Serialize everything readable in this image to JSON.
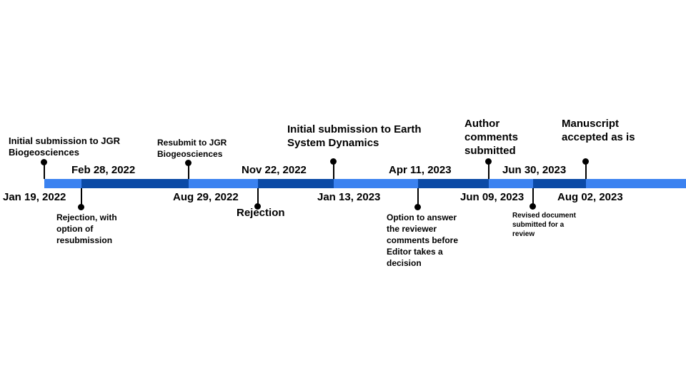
{
  "colors": {
    "light_segment": "#3b82f0",
    "dark_segment": "#0b4aa6"
  },
  "events": [
    {
      "date": "Jan 19, 2022",
      "label": "Initial submission to JGR Biogeosciences"
    },
    {
      "date": "Feb 28, 2022",
      "label": "Rejection, with option of resubmission"
    },
    {
      "date": "Aug 29, 2022",
      "label": "Resubmit to JGR Biogeosciences"
    },
    {
      "date": "Nov 22, 2022",
      "label": "Rejection"
    },
    {
      "date": "Jan 13, 2023",
      "label": "Initial submission to Earth System Dynamics"
    },
    {
      "date": "Apr 11, 2023",
      "label": "Option to answer the reviewer comments before Editor takes a decision"
    },
    {
      "date": "Jun 09, 2023",
      "label": "Author comments submitted"
    },
    {
      "date": "Jun 30, 2023",
      "label": "Revised document submitted for a review"
    },
    {
      "date": "Aug 02, 2023",
      "label": "Manuscript accepted as is"
    }
  ]
}
